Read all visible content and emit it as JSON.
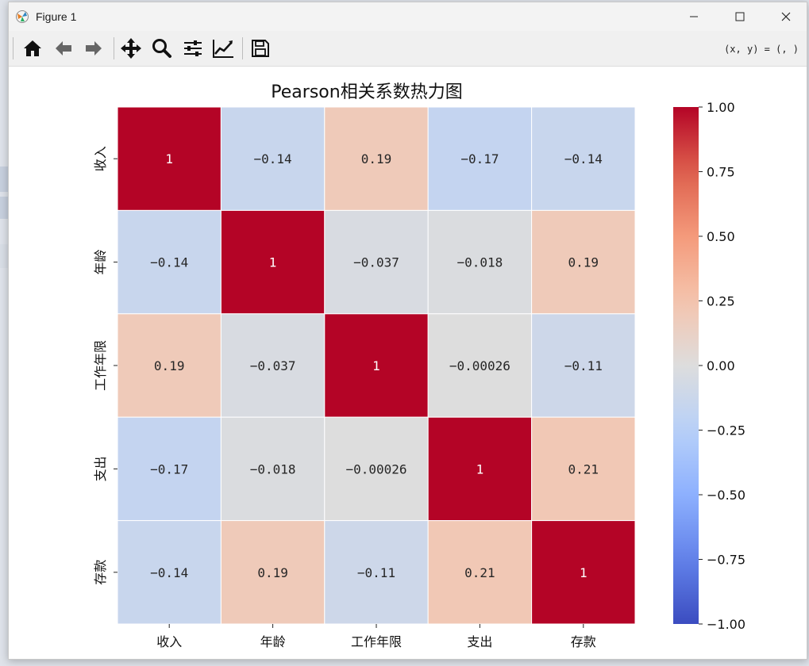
{
  "window": {
    "title": "Figure 1",
    "coords": "(x, y) = (, )"
  },
  "toolbar": {
    "items": [
      "home-icon",
      "back-arrow-icon",
      "forward-arrow-icon",
      "pan-icon",
      "zoom-icon",
      "subplots-config-icon",
      "axes-edit-icon",
      "save-icon"
    ]
  },
  "colors": {
    "min": "#3b4cc0",
    "mid": "#dddddd",
    "max": "#b40426"
  },
  "chart_data": {
    "type": "heatmap",
    "title": "Pearson相关系数热力图",
    "x_labels": [
      "收入",
      "年龄",
      "工作年限",
      "支出",
      "存款"
    ],
    "y_labels": [
      "收入",
      "年龄",
      "工作年限",
      "支出",
      "存款"
    ],
    "values": [
      [
        1,
        -0.14,
        0.19,
        -0.17,
        -0.14
      ],
      [
        -0.14,
        1,
        -0.037,
        -0.018,
        0.19
      ],
      [
        0.19,
        -0.037,
        1,
        -0.00026,
        -0.11
      ],
      [
        -0.17,
        -0.018,
        -0.00026,
        1,
        0.21
      ],
      [
        -0.14,
        0.19,
        -0.11,
        0.21,
        1
      ]
    ],
    "cell_labels": [
      [
        "1",
        "−0.14",
        "0.19",
        "−0.17",
        "−0.14"
      ],
      [
        "−0.14",
        "1",
        "−0.037",
        "−0.018",
        "0.19"
      ],
      [
        "0.19",
        "−0.037",
        "1",
        "−0.00026",
        "−0.11"
      ],
      [
        "−0.17",
        "−0.018",
        "−0.00026",
        "1",
        "0.21"
      ],
      [
        "−0.14",
        "0.19",
        "−0.11",
        "0.21",
        "1"
      ]
    ],
    "colormap": "coolwarm",
    "vmin": -1,
    "vmax": 1,
    "colorbar_ticks": [
      1.0,
      0.75,
      0.5,
      0.25,
      0.0,
      -0.25,
      -0.5,
      -0.75,
      -1.0
    ],
    "colorbar_tick_labels": [
      "1.00",
      "0.75",
      "0.50",
      "0.25",
      "0.00",
      "−0.25",
      "−0.50",
      "−0.75",
      "−1.00"
    ]
  }
}
